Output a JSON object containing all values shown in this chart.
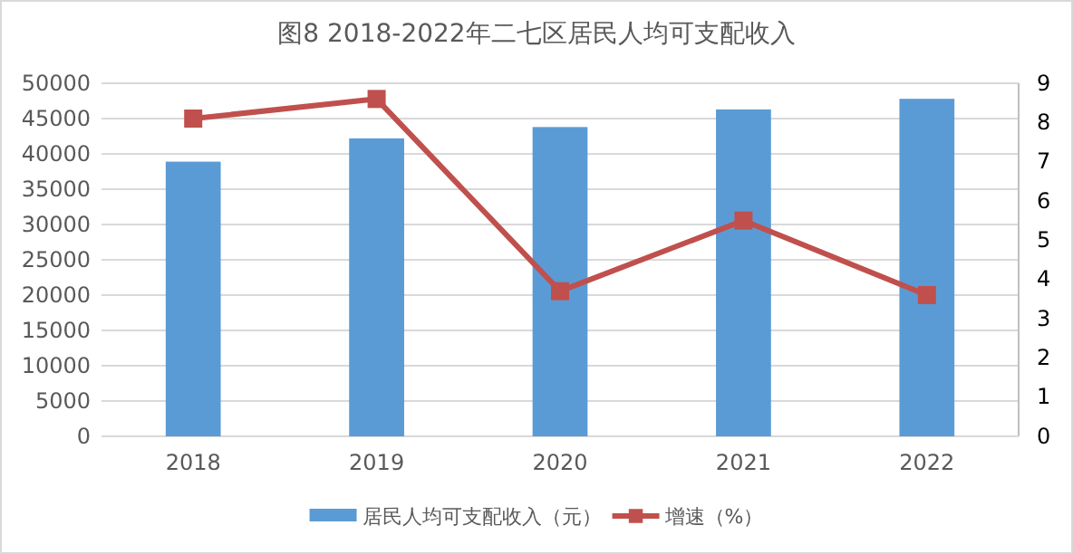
{
  "chart_data": {
    "type": "bar",
    "title": "图8  2018-2022年二七区居民人均可支配收入",
    "categories": [
      "2018",
      "2019",
      "2020",
      "2021",
      "2022"
    ],
    "series": [
      {
        "name": "居民人均可支配收入（元）",
        "color": "#5b9bd5",
        "values": [
          38900,
          42200,
          43800,
          46300,
          47800
        ]
      },
      {
        "name": "增速（%）",
        "type": "line",
        "axis": "y2",
        "color": "#c0504d",
        "marker": "square",
        "values": [
          8.1,
          8.6,
          3.7,
          5.5,
          3.6
        ]
      }
    ],
    "ylim": [
      0,
      50000
    ],
    "yticks": [
      0,
      5000,
      10000,
      15000,
      20000,
      25000,
      30000,
      35000,
      40000,
      45000,
      50000
    ],
    "y2lim": [
      0,
      9
    ],
    "y2ticks": [
      0,
      1,
      2,
      3,
      4,
      5,
      6,
      7,
      8,
      9
    ],
    "grid": "y",
    "legend": "bottom"
  }
}
